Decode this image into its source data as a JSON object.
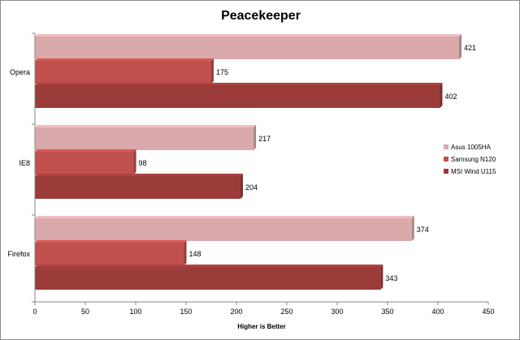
{
  "chart_data": {
    "type": "bar",
    "orientation": "horizontal",
    "title": "Peacekeeper",
    "xlabel": "Higher is Better",
    "ylabel": "",
    "categories": [
      "Opera",
      "IE8",
      "Firefox"
    ],
    "series": [
      {
        "name": "Asus 1005HA",
        "values": [
          421,
          217,
          374
        ],
        "color": "#d9a9ab"
      },
      {
        "name": "Samsung N120",
        "values": [
          175,
          98,
          148
        ],
        "color": "#c0504d"
      },
      {
        "name": "MSI Wind U115",
        "values": [
          402,
          204,
          343
        ],
        "color": "#9b3b3a"
      }
    ],
    "xlim": [
      0,
      450
    ],
    "xticks": [
      "0",
      "50",
      "100",
      "150",
      "200",
      "250",
      "300",
      "350",
      "400",
      "450"
    ],
    "grid": false,
    "legend": "right"
  }
}
